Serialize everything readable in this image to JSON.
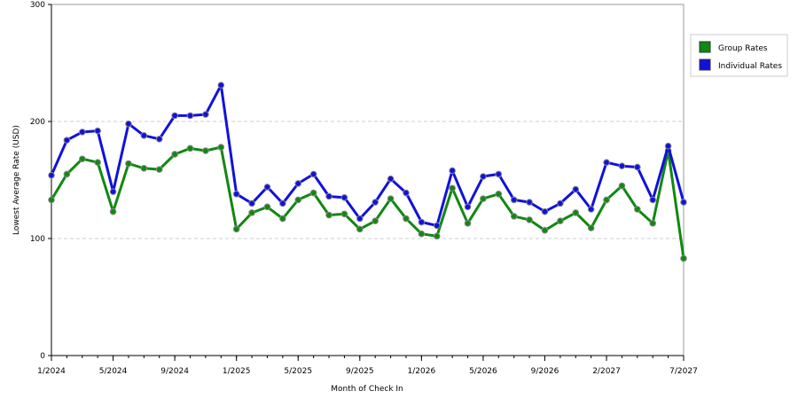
{
  "chart_data": {
    "type": "line",
    "xlabel": "Month of Check In",
    "ylabel": "Lowest Average Rate (USD)",
    "ylim": [
      0,
      300
    ],
    "yticks": [
      0,
      100,
      200,
      300
    ],
    "x_tick_labels": [
      "1/2024",
      "5/2024",
      "9/2024",
      "1/2025",
      "5/2025",
      "9/2025",
      "1/2026",
      "5/2026",
      "9/2026",
      "2/2027",
      "7/2027"
    ],
    "grid": "horizontal dashed",
    "legend_position": "right",
    "x": [
      "1/2024",
      "2/2024",
      "3/2024",
      "4/2024",
      "5/2024",
      "6/2024",
      "7/2024",
      "8/2024",
      "9/2024",
      "10/2024",
      "11/2024",
      "12/2024",
      "1/2025",
      "2/2025",
      "3/2025",
      "4/2025",
      "5/2025",
      "6/2025",
      "7/2025",
      "8/2025",
      "9/2025",
      "10/2025",
      "11/2025",
      "12/2025",
      "1/2026",
      "2/2026",
      "3/2026",
      "4/2026",
      "5/2026",
      "6/2026",
      "7/2026",
      "8/2026",
      "9/2026",
      "10/2026",
      "11/2026",
      "12/2026",
      "2/2027",
      "3/2027",
      "4/2027",
      "5/2027",
      "6/2027",
      "7/2027"
    ],
    "series": [
      {
        "name": "Group Rates",
        "color": "#118811",
        "values": [
          133,
          155,
          168,
          165,
          123,
          164,
          160,
          159,
          172,
          177,
          175,
          178,
          108,
          122,
          127,
          117,
          133,
          139,
          120,
          121,
          108,
          115,
          134,
          117,
          104,
          102,
          143,
          113,
          134,
          138,
          119,
          116,
          107,
          115,
          122,
          109,
          133,
          145,
          125,
          113,
          175,
          83
        ]
      },
      {
        "name": "Individual Rates",
        "color": "#1111dd",
        "values": [
          154,
          184,
          191,
          192,
          140,
          198,
          188,
          185,
          205,
          205,
          206,
          231,
          138,
          130,
          144,
          130,
          147,
          155,
          136,
          135,
          117,
          131,
          151,
          139,
          114,
          111,
          158,
          127,
          153,
          155,
          133,
          131,
          123,
          130,
          142,
          125,
          165,
          162,
          161,
          133,
          179,
          131
        ]
      }
    ]
  }
}
